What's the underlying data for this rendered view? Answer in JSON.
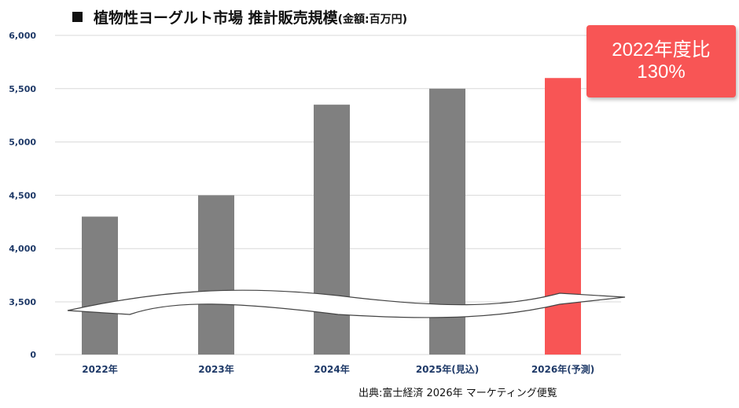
{
  "title": {
    "main": "植物性ヨーグルト市場 推計販売規模",
    "unit": "(金額:百万円)"
  },
  "callout": {
    "line1": "2022年度比",
    "line2": "130%"
  },
  "source": "出典:富士経済 2026年 マーケティング便覧",
  "colors": {
    "bar": "#808080",
    "highlight": "#f85555",
    "axis_text": "#1f3a68",
    "grid": "#d9d9d9"
  },
  "chart_data": {
    "type": "bar",
    "categories": [
      "2022年",
      "2023年",
      "2024年",
      "2025年(見込)",
      "2026年(予測)"
    ],
    "values": [
      4300,
      4500,
      5350,
      5500,
      5600
    ],
    "highlight_index": 4,
    "ylim": [
      0,
      6000
    ],
    "axis_break": [
      0,
      3500
    ],
    "yticks": [
      "0",
      "3,500",
      "4,000",
      "4,500",
      "5,000",
      "5,500",
      "6,000"
    ],
    "ytick_values": [
      0,
      3500,
      4000,
      4500,
      5000,
      5500,
      6000
    ],
    "grid": true,
    "title": "植物性ヨーグルト市場 推計販売規模",
    "xlabel": "",
    "ylabel": ""
  }
}
